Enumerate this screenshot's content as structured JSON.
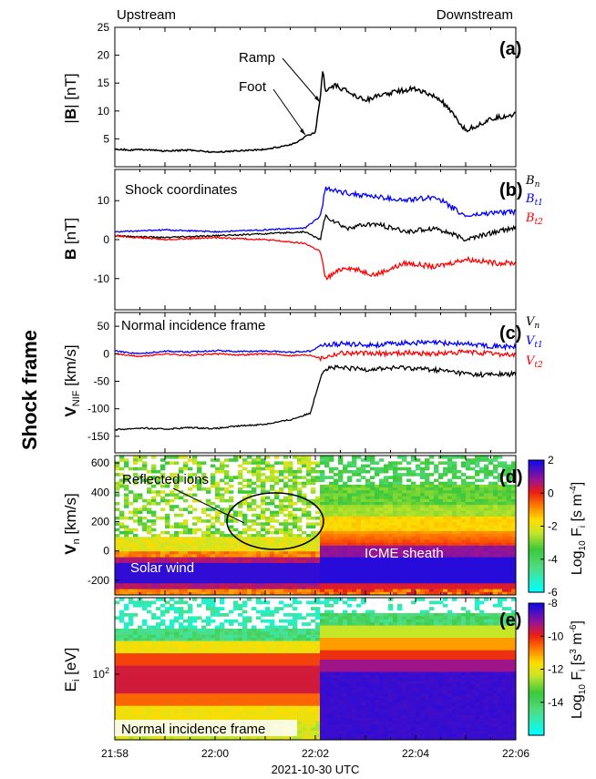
{
  "figure": {
    "side_title": "Shock frame",
    "upstream": "Upstream",
    "downstream": "Downstream",
    "xlabel": "2021-10-30 UTC"
  },
  "chart_data": [
    {
      "type": "line",
      "panel": "(a)",
      "ylabel": "|B| [nT]",
      "ylim": [
        0,
        25
      ],
      "yticks": [
        5,
        10,
        15,
        20,
        25
      ],
      "xticks": [
        "21:58",
        "22:00",
        "22:02",
        "22:04",
        "22:06"
      ],
      "xlim_minutes": [
        0,
        8
      ],
      "annotations": [
        "Ramp",
        "Foot"
      ],
      "series": [
        {
          "color": "#000000",
          "x": [
            0,
            0.3,
            0.6,
            1.0,
            1.5,
            2.0,
            2.5,
            3.0,
            3.3,
            3.6,
            3.8,
            4.0,
            4.1,
            4.15,
            4.2,
            4.4,
            5.0,
            5.6,
            6.0,
            6.5,
            7.0,
            7.5,
            8.0
          ],
          "values": [
            3.2,
            3.0,
            3.1,
            2.8,
            3.0,
            2.6,
            2.9,
            3.1,
            3.6,
            4.2,
            5.4,
            6.2,
            12.5,
            17.5,
            13.5,
            14.5,
            12.0,
            13.5,
            14.0,
            12.0,
            6.5,
            8.5,
            9.5
          ]
        }
      ]
    },
    {
      "type": "line",
      "panel": "(b)",
      "title": "Shock coordinates",
      "ylabel": "B [nT]",
      "ylim": [
        -18,
        18
      ],
      "yticks": [
        -10,
        0,
        10
      ],
      "legend": [
        "B_n",
        "B_t1",
        "B_t2"
      ],
      "series": [
        {
          "name": "B_n",
          "color": "#000000",
          "x": [
            0,
            1,
            2,
            3,
            3.8,
            4.1,
            4.2,
            4.6,
            5.2,
            5.8,
            6.4,
            7.0,
            7.6,
            8.0
          ],
          "values": [
            1,
            0.5,
            1,
            1.5,
            2,
            0,
            6,
            3,
            4,
            2,
            3,
            0,
            2,
            3
          ]
        },
        {
          "name": "B_t1",
          "color": "#0000ff",
          "x": [
            0,
            1,
            2,
            3,
            3.8,
            4.1,
            4.2,
            4.6,
            5.2,
            5.8,
            6.4,
            7.0,
            7.6,
            8.0
          ],
          "values": [
            2,
            2.5,
            2,
            2.5,
            3,
            6,
            13,
            12,
            11,
            10,
            11,
            6,
            7,
            7
          ]
        },
        {
          "name": "B_t2",
          "color": "#ff0000",
          "x": [
            0,
            1,
            2,
            3,
            3.8,
            4.1,
            4.2,
            4.6,
            5.2,
            5.8,
            6.4,
            7.0,
            7.6,
            8.0
          ],
          "values": [
            1,
            0,
            0.5,
            0,
            -1,
            -3,
            -10,
            -7,
            -9,
            -6,
            -7,
            -5,
            -6,
            -6
          ]
        }
      ]
    },
    {
      "type": "line",
      "panel": "(c)",
      "title": "Normal incidence frame",
      "ylabel": "V_NIF [km/s]",
      "ylim": [
        -180,
        75
      ],
      "yticks": [
        -150,
        -100,
        -50,
        0,
        50
      ],
      "legend": [
        "V_n",
        "V_t1",
        "V_t2"
      ],
      "series": [
        {
          "name": "V_n",
          "color": "#000000",
          "x": [
            0,
            0.5,
            1,
            1.5,
            2,
            2.5,
            3,
            3.5,
            3.9,
            4.05,
            4.15,
            4.3,
            5,
            5.8,
            6.5,
            7.2,
            8.0
          ],
          "values": [
            -138,
            -135,
            -137,
            -134,
            -136,
            -131,
            -128,
            -120,
            -108,
            -60,
            -30,
            -25,
            -28,
            -25,
            -30,
            -38,
            -37
          ]
        },
        {
          "name": "V_t1",
          "color": "#0000ff",
          "x": [
            0,
            0.5,
            1,
            1.5,
            2,
            2.5,
            3,
            3.5,
            3.9,
            4.1,
            4.5,
            5.2,
            5.8,
            6.4,
            7.0,
            7.6,
            8.0
          ],
          "values": [
            5,
            0,
            5,
            3,
            6,
            4,
            5,
            3,
            5,
            15,
            18,
            16,
            20,
            20,
            18,
            14,
            12
          ]
        },
        {
          "name": "V_t2",
          "color": "#ff0000",
          "x": [
            0,
            0.5,
            1,
            1.5,
            2,
            2.5,
            3,
            3.5,
            3.9,
            4.1,
            4.5,
            5.2,
            5.8,
            6.4,
            7.0,
            7.6,
            8.0
          ],
          "values": [
            0,
            -5,
            0,
            -3,
            0,
            -2,
            0,
            -3,
            -2,
            -8,
            2,
            0,
            2,
            0,
            3,
            0,
            -2
          ]
        }
      ]
    },
    {
      "type": "heatmap",
      "panel": "(d)",
      "ylabel": "V_n [km/s]",
      "ylim": [
        -300,
        650
      ],
      "yticks": [
        -200,
        0,
        200,
        400,
        600
      ],
      "colorbar": {
        "label": "Log10 F_i [s m^-4]",
        "range": [
          -6,
          2
        ],
        "ticks": [
          -6,
          -4,
          -2,
          0,
          2
        ]
      },
      "annotations": [
        "Reflected ions",
        "Solar wind",
        "ICME sheath"
      ]
    },
    {
      "type": "heatmap",
      "panel": "(e)",
      "ylabel": "E_i [eV]",
      "yticks": [
        "10^2"
      ],
      "log_scale": true,
      "colorbar": {
        "label": "Log10 F_i [s^3 m^-6]",
        "range": [
          -16,
          -8
        ],
        "ticks": [
          -14,
          -12,
          -10,
          -8
        ]
      },
      "annotations": [
        "Normal incidence frame"
      ]
    }
  ],
  "labels": {
    "a_panel": "(a)",
    "b_panel": "(b)",
    "c_panel": "(c)",
    "d_panel": "(d)",
    "e_panel": "(e)",
    "ramp": "Ramp",
    "foot": "Foot",
    "shock_coords": "Shock coordinates",
    "nif_c": "Normal incidence frame",
    "reflected": "Reflected ions",
    "solar_wind": "Solar wind",
    "icme": "ICME sheath",
    "nif_e": "Normal incidence frame",
    "log10": "Log",
    "colorbar_d_label": "[s m",
    "colorbar_e_label": "[s",
    "e_ytick": "10",
    "e_ytick_exp": "2"
  }
}
